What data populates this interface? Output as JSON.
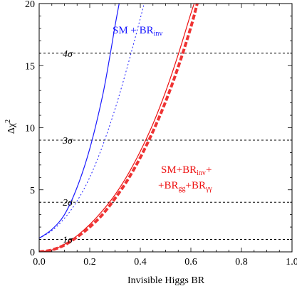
{
  "chart_data": {
    "type": "line",
    "xlabel": "Invisible Higgs BR",
    "ylabel_main": "Δχ",
    "ylabel_sup": "2",
    "xlim": [
      0.0,
      1.0
    ],
    "ylim": [
      0,
      20
    ],
    "x_ticks": [
      {
        "value": 0.0,
        "label": "0.0"
      },
      {
        "value": 0.2,
        "label": "0.2"
      },
      {
        "value": 0.4,
        "label": "0.4"
      },
      {
        "value": 0.6,
        "label": "0.6"
      },
      {
        "value": 0.8,
        "label": "0.8"
      },
      {
        "value": 1.0,
        "label": "1.0"
      }
    ],
    "y_ticks": [
      {
        "value": 0,
        "label": "0"
      },
      {
        "value": 5,
        "label": "5"
      },
      {
        "value": 10,
        "label": "10"
      },
      {
        "value": 15,
        "label": "15"
      },
      {
        "value": 20,
        "label": "20"
      }
    ],
    "reference_lines": [
      {
        "y": 1,
        "label": "1σ"
      },
      {
        "y": 4,
        "label": "2σ"
      },
      {
        "y": 9,
        "label": "3σ"
      },
      {
        "y": 16,
        "label": "4σ"
      }
    ],
    "series": [
      {
        "key": "blue-solid",
        "color": "#1a1aff",
        "style": "solid",
        "x": [
          0.0,
          0.05,
          0.1,
          0.15,
          0.2,
          0.25,
          0.28,
          0.3,
          0.32
        ],
        "y": [
          1.1,
          1.8,
          3.0,
          5.2,
          8.3,
          12.5,
          15.8,
          18.2,
          20.4
        ]
      },
      {
        "key": "blue-dashed",
        "color": "#1a1aff",
        "style": "dashed",
        "x": [
          0.0,
          0.05,
          0.1,
          0.15,
          0.2,
          0.25,
          0.3,
          0.35,
          0.4,
          0.42
        ],
        "y": [
          1.1,
          1.7,
          2.7,
          4.1,
          6.0,
          8.5,
          11.5,
          15.0,
          18.8,
          20.4
        ]
      },
      {
        "key": "red-solid",
        "color": "#ee1111",
        "style": "solid",
        "x": [
          0.0,
          0.05,
          0.1,
          0.15,
          0.2,
          0.25,
          0.3,
          0.35,
          0.4,
          0.45,
          0.5,
          0.55,
          0.6,
          0.62
        ],
        "y": [
          0.0,
          0.15,
          0.6,
          1.3,
          2.2,
          3.3,
          4.6,
          6.2,
          8.1,
          10.3,
          12.9,
          15.9,
          19.2,
          20.4
        ]
      },
      {
        "key": "red-thick-dashed",
        "color": "#ee3333",
        "style": "thick-dashed",
        "x": [
          0.0,
          0.05,
          0.1,
          0.15,
          0.2,
          0.25,
          0.3,
          0.35,
          0.4,
          0.45,
          0.5,
          0.55,
          0.6,
          0.63
        ],
        "y": [
          0.0,
          0.15,
          0.55,
          1.2,
          2.0,
          3.0,
          4.3,
          5.8,
          7.6,
          9.7,
          12.1,
          14.9,
          18.1,
          20.4
        ]
      }
    ],
    "annotations": {
      "blue_label_main": "SM + BR",
      "blue_label_sub": "inv",
      "red_line1_main": "SM+BR",
      "red_line1_sub": "inv",
      "red_line1_end": "+",
      "red_line2_a": "+BR",
      "red_line2_sub_a": "gg",
      "red_line2_b": "+BR",
      "red_line2_sub_b": "γγ"
    }
  }
}
